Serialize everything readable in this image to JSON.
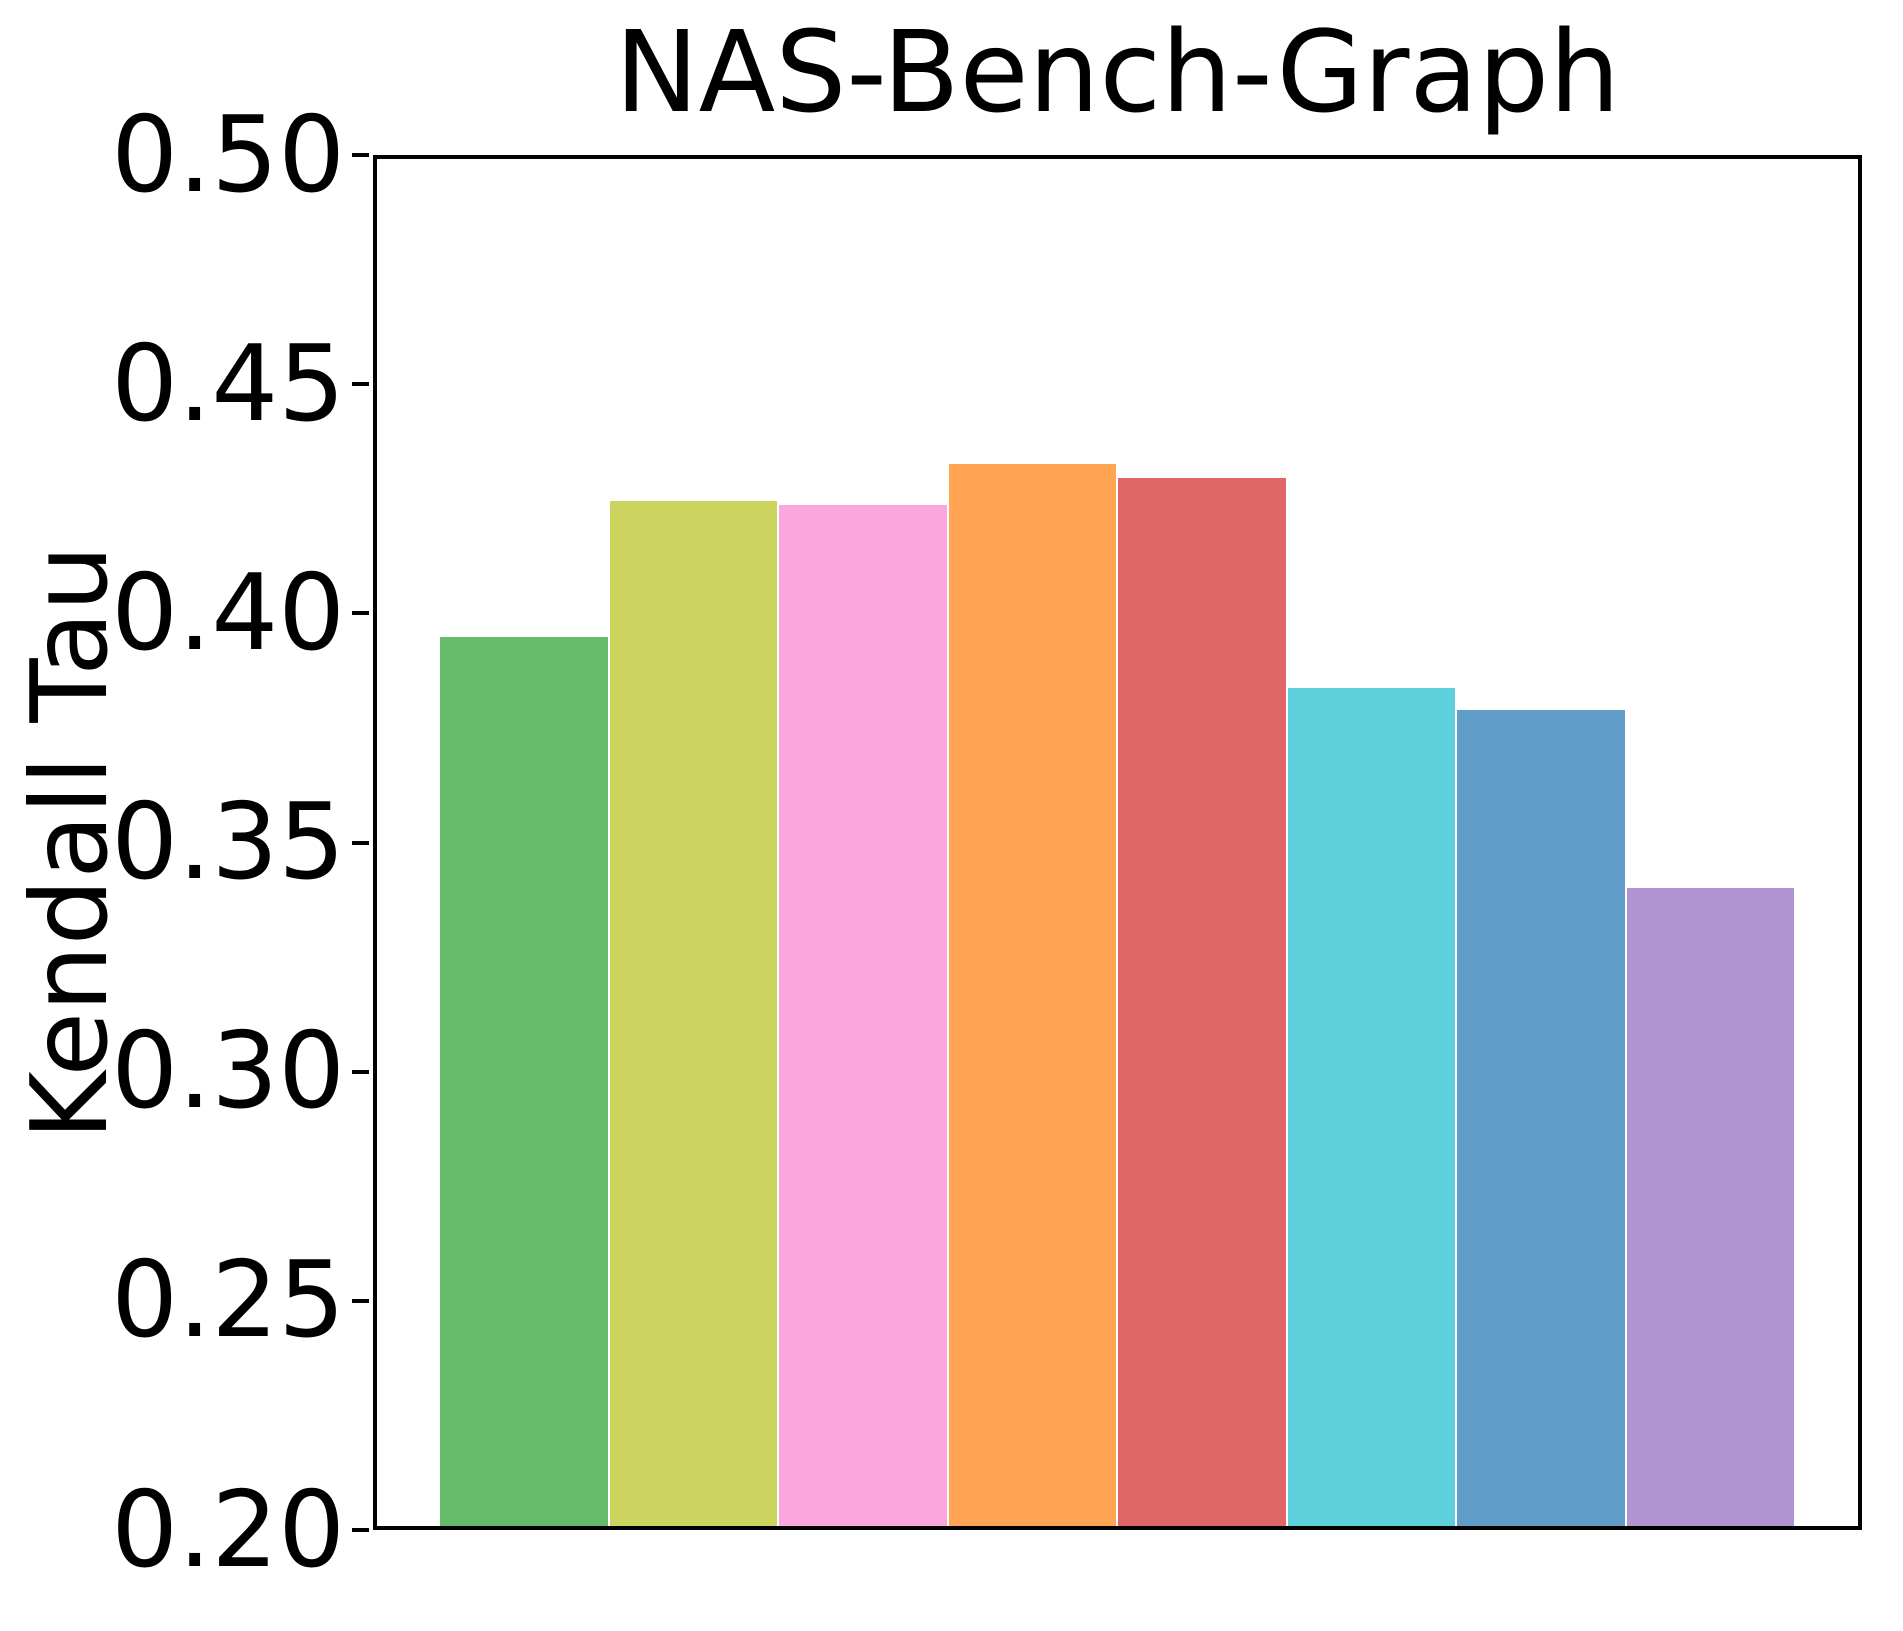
{
  "figure": {
    "title": "NAS-Bench-Graph",
    "ylabel": "Kendall Tau"
  },
  "chart_data": {
    "type": "bar",
    "title": "NAS-Bench-Graph",
    "xlabel": "",
    "ylabel": "Kendall Tau",
    "ylim": [
      0.2,
      0.5
    ],
    "yticks": [
      0.5,
      0.45,
      0.4,
      0.35,
      0.3,
      0.25,
      0.2
    ],
    "grid": false,
    "legend_position": "none",
    "x_tick_labels_visible": false,
    "values": [
      0.395,
      0.425,
      0.424,
      0.433,
      0.43,
      0.384,
      0.379,
      0.34
    ],
    "colors": [
      "#66bb6a",
      "#ccd35e",
      "#faa7dd",
      "#ffa554",
      "#e06767",
      "#5ed0dc",
      "#5f9dc8",
      "#b193d1"
    ]
  }
}
